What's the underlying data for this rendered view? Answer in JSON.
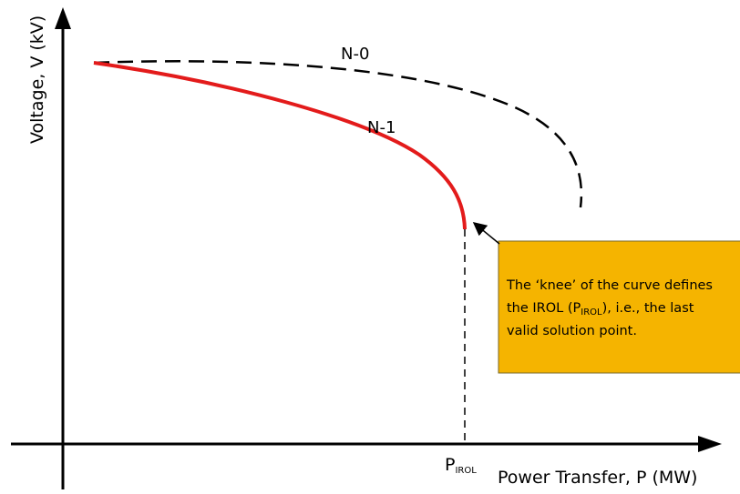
{
  "diagram": {
    "y_axis_label": "Voltage, V (kV)",
    "x_axis_label": "Power Transfer, P (MW)",
    "x_marker": {
      "base": "P",
      "subscript": "IROL"
    },
    "curves": [
      {
        "label": "N-0",
        "style": "dashed",
        "color": "#000000"
      },
      {
        "label": "N-1",
        "style": "solid",
        "color": "#e31b1b"
      }
    ],
    "callout": {
      "fill": "#f5b400",
      "line1": "The ‘knee’ of the curve defines",
      "line2_before": "the IROL (P",
      "line2_sub": "IROL",
      "line2_after": "), i.e., the last",
      "line3": "valid solution point."
    }
  }
}
